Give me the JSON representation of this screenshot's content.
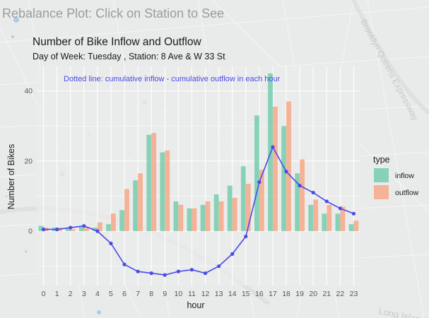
{
  "page": {
    "title": "Rebalance Plot: Click on Station to See"
  },
  "map_labels": [
    "Brooklyn Queens Expressway",
    "Long Island"
  ],
  "colors": {
    "inflow": "#5cc8a0",
    "outflow": "#f89a72",
    "line": "#4a4ae8",
    "panel": "#ebebeb"
  },
  "chart_data": {
    "type": "bar",
    "title": "Number of Bike Inflow and Outflow",
    "subtitle": "Day of Week: Tuesday , Station: 8 Ave & W 33 St",
    "annotation": "Dotted line: cumulative inflow - cumulative outflow in each hour",
    "xlabel": "hour",
    "ylabel": "Number of Bikes",
    "categories": [
      "0",
      "1",
      "2",
      "3",
      "4",
      "5",
      "6",
      "7",
      "8",
      "9",
      "10",
      "11",
      "12",
      "13",
      "14",
      "15",
      "16",
      "17",
      "18",
      "19",
      "20",
      "21",
      "22",
      "23"
    ],
    "yticks": [
      0,
      20,
      40
    ],
    "ylim": [
      -15.5,
      47
    ],
    "grid": true,
    "series": [
      {
        "name": "inflow",
        "values": [
          1.5,
          1.0,
          1.0,
          1.5,
          1.0,
          2.0,
          6.0,
          14.5,
          27.5,
          22.5,
          8.5,
          6.5,
          7.5,
          10.5,
          13.0,
          18.5,
          33.0,
          45.0,
          30.0,
          16.5,
          7.5,
          5.0,
          5.0,
          2.0
        ]
      },
      {
        "name": "outflow",
        "values": [
          1.0,
          1.0,
          0.5,
          1.0,
          2.5,
          5.0,
          12.0,
          16.5,
          28.0,
          23.0,
          7.5,
          6.5,
          8.5,
          8.5,
          9.5,
          13.5,
          17.5,
          35.5,
          37.0,
          20.5,
          9.0,
          7.5,
          7.0,
          3.0
        ]
      },
      {
        "name": "cumulative",
        "values": [
          0.5,
          0.5,
          1.0,
          1.5,
          0.0,
          -3.5,
          -9.5,
          -11.5,
          -12.0,
          -12.5,
          -11.5,
          -11.0,
          -12.0,
          -10.0,
          -6.5,
          -1.5,
          14.0,
          24.0,
          17.0,
          13.0,
          11.0,
          8.5,
          6.5,
          5.0
        ]
      }
    ],
    "legend": {
      "title": "type",
      "position": "right",
      "items": [
        "inflow",
        "outflow"
      ]
    }
  }
}
